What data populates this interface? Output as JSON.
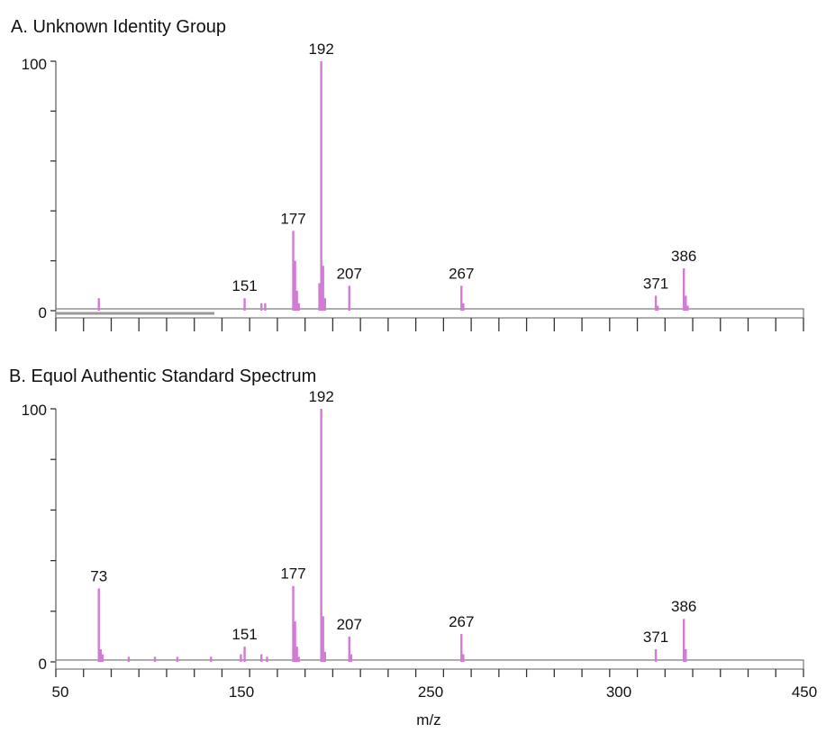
{
  "chart_data": [
    {
      "type": "bar",
      "title": "A. Unknown Identity Group",
      "ylim": [
        0,
        100
      ],
      "y_tick_labels": [
        "100",
        "0"
      ],
      "xlim": [
        50,
        450
      ],
      "x_tick_labels": [],
      "xlabel": "",
      "grid": false,
      "color": "#d27bd5",
      "peaks": [
        {
          "mz": 73,
          "intensity": 5
        },
        {
          "mz": 151,
          "intensity": 5,
          "label": "151"
        },
        {
          "mz": 160,
          "intensity": 3
        },
        {
          "mz": 162,
          "intensity": 3
        },
        {
          "mz": 177,
          "intensity": 32,
          "label": "177"
        },
        {
          "mz": 178,
          "intensity": 20
        },
        {
          "mz": 179,
          "intensity": 8
        },
        {
          "mz": 180,
          "intensity": 3
        },
        {
          "mz": 191,
          "intensity": 11
        },
        {
          "mz": 192,
          "intensity": 100,
          "label": "192"
        },
        {
          "mz": 193,
          "intensity": 18
        },
        {
          "mz": 194,
          "intensity": 5
        },
        {
          "mz": 207,
          "intensity": 10,
          "label": "207"
        },
        {
          "mz": 267,
          "intensity": 10,
          "label": "267"
        },
        {
          "mz": 268,
          "intensity": 3
        },
        {
          "mz": 371,
          "intensity": 6,
          "label": "371"
        },
        {
          "mz": 372,
          "intensity": 2
        },
        {
          "mz": 386,
          "intensity": 17,
          "label": "386"
        },
        {
          "mz": 387,
          "intensity": 6
        },
        {
          "mz": 388,
          "intensity": 2
        }
      ]
    },
    {
      "type": "bar",
      "title": "B. Equol Authentic Standard Spectrum",
      "ylim": [
        0,
        100
      ],
      "y_tick_labels": [
        "100",
        "0"
      ],
      "xlim": [
        50,
        450
      ],
      "x_tick_labels": [
        "50",
        "150",
        "250",
        "300",
        "450"
      ],
      "xlabel": "m/z",
      "grid": false,
      "color": "#d27bd5",
      "peaks": [
        {
          "mz": 73,
          "intensity": 29,
          "label": "73"
        },
        {
          "mz": 74,
          "intensity": 5
        },
        {
          "mz": 75,
          "intensity": 3
        },
        {
          "mz": 89,
          "intensity": 2
        },
        {
          "mz": 103,
          "intensity": 2
        },
        {
          "mz": 115,
          "intensity": 2
        },
        {
          "mz": 133,
          "intensity": 2
        },
        {
          "mz": 149,
          "intensity": 3
        },
        {
          "mz": 151,
          "intensity": 6,
          "label": "151"
        },
        {
          "mz": 160,
          "intensity": 3
        },
        {
          "mz": 163,
          "intensity": 2
        },
        {
          "mz": 177,
          "intensity": 30,
          "label": "177"
        },
        {
          "mz": 178,
          "intensity": 16
        },
        {
          "mz": 179,
          "intensity": 6
        },
        {
          "mz": 180,
          "intensity": 2
        },
        {
          "mz": 192,
          "intensity": 100,
          "label": "192"
        },
        {
          "mz": 193,
          "intensity": 18
        },
        {
          "mz": 194,
          "intensity": 4
        },
        {
          "mz": 207,
          "intensity": 10,
          "label": "207"
        },
        {
          "mz": 208,
          "intensity": 3
        },
        {
          "mz": 267,
          "intensity": 11,
          "label": "267"
        },
        {
          "mz": 268,
          "intensity": 3
        },
        {
          "mz": 371,
          "intensity": 5,
          "label": "371"
        },
        {
          "mz": 386,
          "intensity": 17,
          "label": "386"
        },
        {
          "mz": 387,
          "intensity": 5
        }
      ]
    }
  ]
}
